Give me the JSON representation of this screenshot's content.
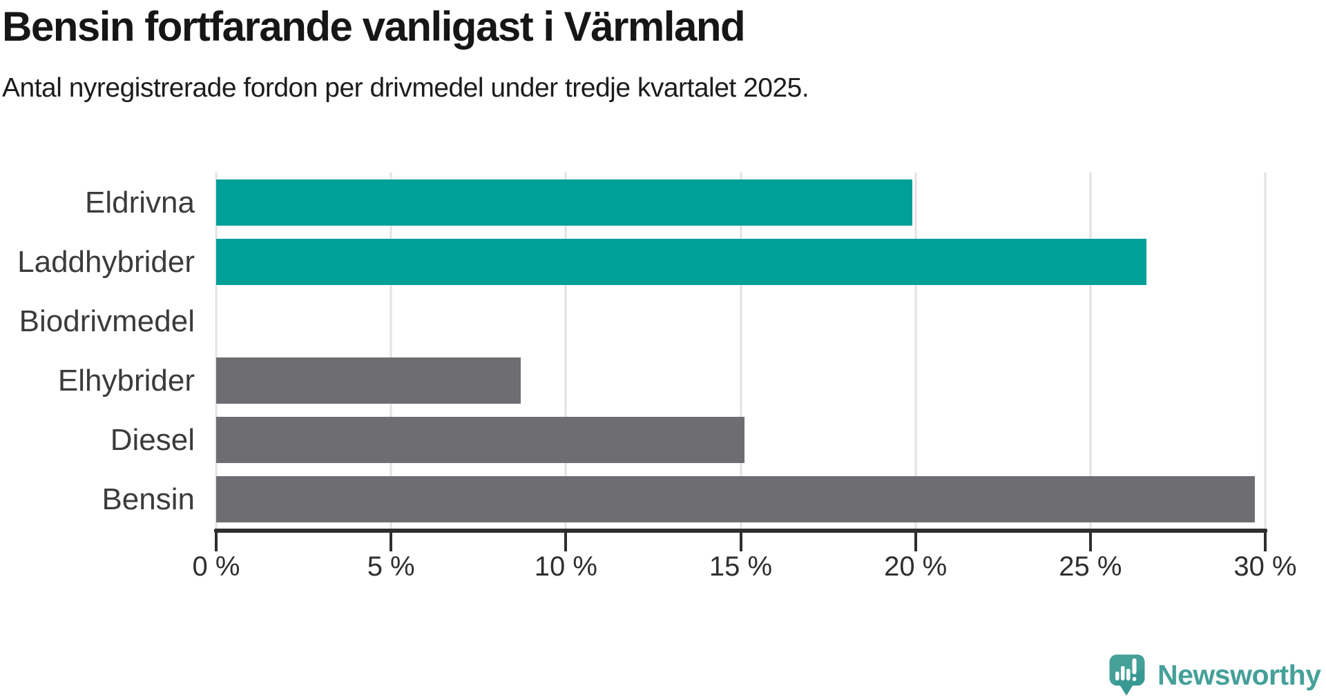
{
  "title": "Bensin fortfarande vanligast i Värmland",
  "subtitle": "Antal nyregistrerade fordon per drivmedel under tredje kvartalet 2025.",
  "chart_data": {
    "type": "bar",
    "orientation": "horizontal",
    "categories": [
      "Eldrivna",
      "Laddhybrider",
      "Biodrivmedel",
      "Elhybrider",
      "Diesel",
      "Bensin"
    ],
    "values": [
      19.9,
      26.6,
      0,
      8.7,
      15.1,
      29.7
    ],
    "bar_colors": [
      "#00a098",
      "#00a098",
      "#6d6d72",
      "#6d6d72",
      "#6d6d72",
      "#6d6d72"
    ],
    "title": "Bensin fortfarande vanligast i Värmland",
    "xlabel": "",
    "ylabel": "",
    "unit": "%",
    "xlim": [
      0,
      30
    ],
    "x_ticks": [
      0,
      5,
      10,
      15,
      20,
      25,
      30
    ],
    "x_tick_labels": [
      "0 %",
      "5 %",
      "10 %",
      "15 %",
      "20 %",
      "25 %",
      "30 %"
    ],
    "grid": "vertical-light-gray",
    "legend": "none"
  },
  "colors": {
    "highlight_bar": "#00a098",
    "default_bar": "#6d6d72",
    "axis": "#2e2e2e",
    "grid": "#e2e2e2",
    "logo_teal": "#45a099"
  },
  "branding": {
    "logo_text": "Newsworthy"
  }
}
